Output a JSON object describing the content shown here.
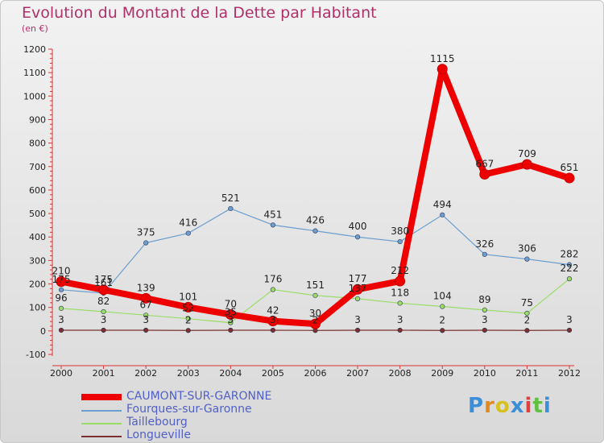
{
  "title": "Evolution du Montant de la Dette par Habitant",
  "subtitle": "(en €)",
  "brand": "Proxiti",
  "chart_data": {
    "type": "line",
    "categories": [
      "2000",
      "2001",
      "2002",
      "2003",
      "2004",
      "2005",
      "2006",
      "2007",
      "2008",
      "2009",
      "2010",
      "2011",
      "2012"
    ],
    "ylim": [
      -100,
      1200
    ],
    "yticks": [
      -100,
      0,
      100,
      200,
      300,
      400,
      500,
      600,
      700,
      800,
      900,
      1000,
      1100,
      1200
    ],
    "grid": false,
    "legend": "bottom-left",
    "series": [
      {
        "name": "CAUMONT-SUR-GARONNE",
        "color": "#ee0000",
        "width": 8,
        "values": [
          210,
          175,
          139,
          101,
          70,
          42,
          30,
          177,
          212,
          1115,
          667,
          709,
          651
        ],
        "labels": [
          "210",
          "175",
          "139",
          "101",
          "70",
          "42",
          "30",
          "177",
          "212",
          "1115",
          "667",
          "709",
          "651"
        ]
      },
      {
        "name": "Fourques-sur-Garonne",
        "color": "#6a9fd0",
        "width": 1.2,
        "values": [
          175,
          161,
          375,
          416,
          521,
          451,
          426,
          400,
          380,
          494,
          326,
          306,
          282
        ],
        "labels": [
          "175",
          "161",
          "375",
          "416",
          "521",
          "451",
          "426",
          "400",
          "380",
          "494",
          "326",
          "306",
          "282"
        ]
      },
      {
        "name": "Taillebourg",
        "color": "#99dd66",
        "width": 1.2,
        "values": [
          96,
          82,
          67,
          52,
          35,
          176,
          151,
          137,
          118,
          104,
          89,
          75,
          222
        ],
        "labels": [
          "96",
          "82",
          "67",
          "52",
          "35",
          "176",
          "151",
          "137",
          "118",
          "104",
          "89",
          "75",
          "222"
        ]
      },
      {
        "name": "Longueville",
        "color": "#7a3030",
        "width": 1.2,
        "values": [
          3,
          3,
          3,
          2,
          3,
          3,
          2,
          3,
          3,
          2,
          3,
          2,
          3
        ],
        "labels": [
          "3",
          "3",
          "3",
          "2",
          "3",
          "3",
          "2",
          "3",
          "3",
          "2",
          "3",
          "2",
          "3"
        ]
      }
    ]
  }
}
